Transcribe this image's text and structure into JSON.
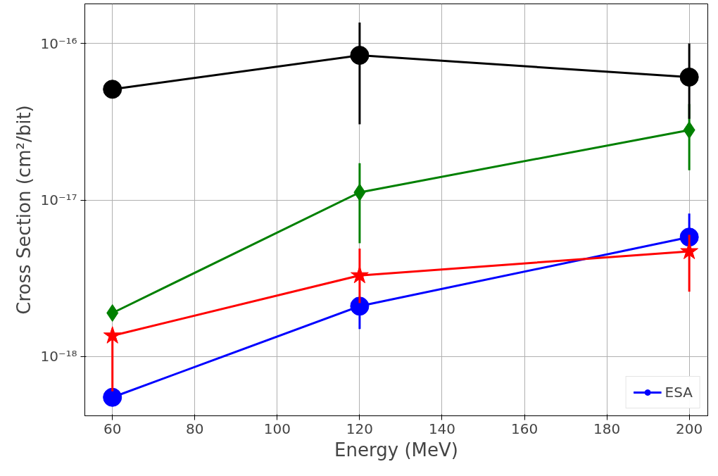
{
  "chart_data": {
    "type": "line",
    "xlabel": "Energy (MeV)",
    "ylabel": "Cross Section (cm²/bit)",
    "x": [
      60,
      120,
      200
    ],
    "series": [
      {
        "name": "ESA",
        "color": "#0000ff",
        "marker": "circle",
        "values": [
          5.5e-19,
          2.1e-18,
          5.8e-18
        ],
        "errors": [
          null,
          [
            1.5e-18,
            2.1e-18
          ],
          [
            5.8e-18,
            8.2e-18
          ]
        ]
      },
      {
        "color": "#008000",
        "marker": "diamond",
        "values": [
          1.9e-18,
          1.12e-17,
          2.8e-17
        ],
        "errors": [
          null,
          [
            5.3e-18,
            1.72e-17
          ],
          [
            1.55e-17,
            4.1e-17
          ]
        ]
      },
      {
        "color": "#000000",
        "marker": "circle",
        "values": [
          5.1e-17,
          8.4e-17,
          6.1e-17
        ],
        "errors": [
          null,
          [
            3.05e-17,
            1.36e-16
          ],
          [
            3.3e-17,
            1e-16
          ]
        ]
      },
      {
        "color": "#ff0000",
        "marker": "star",
        "values": [
          1.36e-18,
          3.3e-18,
          4.7e-18
        ],
        "errors": [
          [
            6e-19,
            1.36e-18
          ],
          [
            2.2e-18,
            4.9e-18
          ],
          [
            2.6e-18,
            6e-18
          ]
        ]
      }
    ],
    "log": "y",
    "xlim": [
      53.3,
      204.5
    ],
    "ylim": [
      4.19e-19,
      1.79e-16
    ],
    "xticks": [
      60,
      80,
      100,
      120,
      140,
      160,
      180,
      200
    ],
    "yticks": [
      {
        "value": 1e-18,
        "label": "10⁻¹⁸"
      },
      {
        "value": 1e-17,
        "label": "10⁻¹⁷"
      },
      {
        "value": 1e-16,
        "label": "10⁻¹⁶"
      }
    ],
    "grid": true,
    "legend": "bottom right",
    "line_style": "solid"
  }
}
